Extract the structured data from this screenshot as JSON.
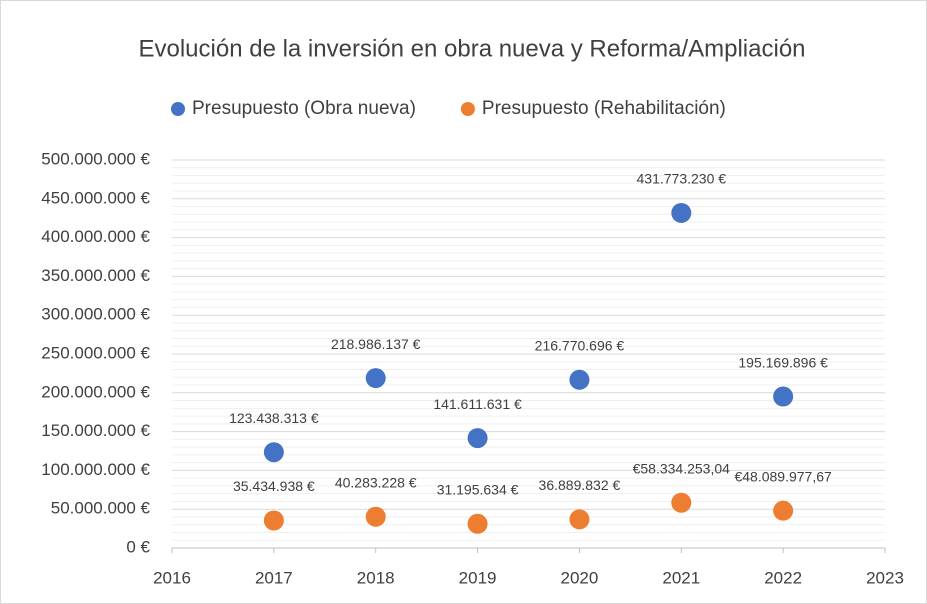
{
  "chart_data": {
    "type": "scatter",
    "title": "Evolución de la inversión en obra nueva y Reforma/Ampliación",
    "series": [
      {
        "name": "Presupuesto (Obra nueva)",
        "color": "#4472c4",
        "x": [
          2017,
          2018,
          2019,
          2020,
          2021,
          2022
        ],
        "values": [
          123438313,
          218986137,
          141611631,
          216770696,
          431773230,
          195169896
        ],
        "value_labels": [
          "123.438.313 €",
          "218.986.137 €",
          "141.611.631 €",
          "216.770.696 €",
          "431.773.230 €",
          "195.169.896 €"
        ]
      },
      {
        "name": "Presupuesto (Rehabilitación)",
        "color": "#ed7d31",
        "x": [
          2017,
          2018,
          2019,
          2020,
          2021,
          2022
        ],
        "values": [
          35434938,
          40283228,
          31195634,
          36889832,
          58334253.04,
          48089977.67
        ],
        "value_labels": [
          "35.434.938 €",
          "40.283.228 €",
          "31.195.634 €",
          "36.889.832 €",
          "€58.334.253,04",
          "€48.089.977,67"
        ]
      }
    ],
    "xlim": [
      2016,
      2023
    ],
    "xticks": [
      2016,
      2017,
      2018,
      2019,
      2020,
      2021,
      2022,
      2023
    ],
    "ylim": [
      0,
      500000000
    ],
    "yticks": [
      {
        "value": 0,
        "label": "0 €"
      },
      {
        "value": 50000000,
        "label": "50.000.000 €"
      },
      {
        "value": 100000000,
        "label": "100.000.000 €"
      },
      {
        "value": 150000000,
        "label": "150.000.000 €"
      },
      {
        "value": 200000000,
        "label": "200.000.000 €"
      },
      {
        "value": 250000000,
        "label": "250.000.000 €"
      },
      {
        "value": 300000000,
        "label": "300.000.000 €"
      },
      {
        "value": 350000000,
        "label": "350.000.000 €"
      },
      {
        "value": 400000000,
        "label": "400.000.000 €"
      },
      {
        "value": 450000000,
        "label": "450.000.000 €"
      },
      {
        "value": 500000000,
        "label": "500.000.000 €"
      }
    ],
    "grid": true,
    "minor_grid_divisions": 5,
    "legend": "top"
  }
}
